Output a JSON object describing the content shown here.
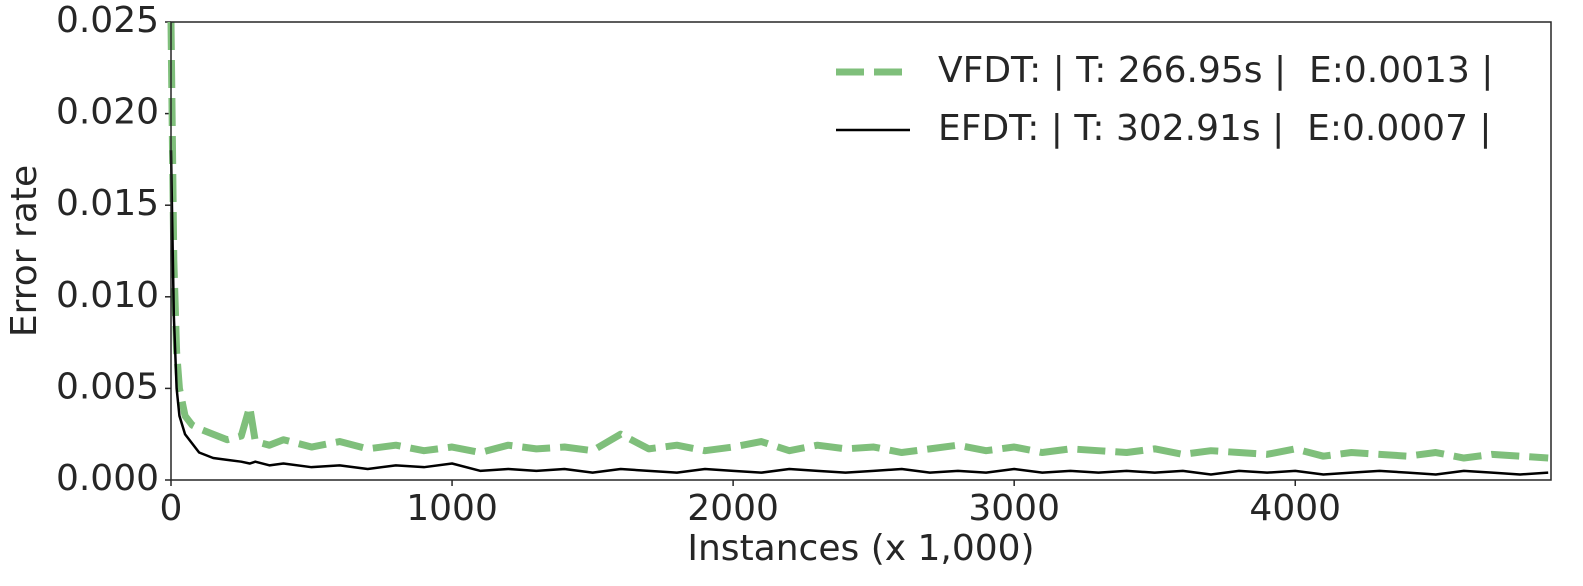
{
  "chart_data": {
    "type": "line",
    "x_label": "Instances (x 1,000)",
    "y_label": "Error rate",
    "x": [
      0,
      10,
      20,
      30,
      50,
      75,
      100,
      150,
      200,
      250,
      280,
      300,
      350,
      400,
      500,
      600,
      700,
      800,
      900,
      1000,
      1100,
      1200,
      1300,
      1400,
      1500,
      1600,
      1700,
      1800,
      1900,
      2000,
      2100,
      2200,
      2300,
      2400,
      2500,
      2600,
      2700,
      2800,
      2900,
      3000,
      3100,
      3200,
      3300,
      3400,
      3500,
      3600,
      3700,
      3800,
      3900,
      4000,
      4100,
      4200,
      4300,
      4400,
      4500,
      4600,
      4700,
      4800,
      4900
    ],
    "series": [
      {
        "name": "VFDT: | T: 266.95s |  E:0.0013 |",
        "color": "#7fbf7b",
        "dashed": true,
        "values": [
          0.025,
          0.012,
          0.007,
          0.005,
          0.0035,
          0.003,
          0.0028,
          0.0025,
          0.0022,
          0.0024,
          0.004,
          0.0021,
          0.0019,
          0.0022,
          0.0018,
          0.0021,
          0.0017,
          0.0019,
          0.0016,
          0.0018,
          0.0015,
          0.0019,
          0.0017,
          0.0018,
          0.0016,
          0.0025,
          0.0017,
          0.0019,
          0.0016,
          0.0018,
          0.0021,
          0.0016,
          0.0019,
          0.0017,
          0.0018,
          0.0015,
          0.0017,
          0.0019,
          0.0016,
          0.0018,
          0.0015,
          0.0017,
          0.0016,
          0.0015,
          0.0017,
          0.0014,
          0.0016,
          0.0015,
          0.0014,
          0.0017,
          0.0013,
          0.0015,
          0.0014,
          0.0013,
          0.0015,
          0.0012,
          0.0014,
          0.0013,
          0.0012
        ]
      },
      {
        "name": "EFDT: | T: 302.91s |  E:0.0007 |",
        "color": "#000000",
        "dashed": false,
        "values": [
          0.018,
          0.009,
          0.005,
          0.0035,
          0.0025,
          0.002,
          0.0015,
          0.0012,
          0.0011,
          0.001,
          0.0009,
          0.001,
          0.0008,
          0.0009,
          0.0007,
          0.0008,
          0.0006,
          0.0008,
          0.0007,
          0.0009,
          0.0005,
          0.0006,
          0.0005,
          0.0006,
          0.0004,
          0.0006,
          0.0005,
          0.0004,
          0.0006,
          0.0005,
          0.0004,
          0.0006,
          0.0005,
          0.0004,
          0.0005,
          0.0006,
          0.0004,
          0.0005,
          0.0004,
          0.0006,
          0.0004,
          0.0005,
          0.0004,
          0.0005,
          0.0004,
          0.0005,
          0.0003,
          0.0005,
          0.0004,
          0.0005,
          0.0003,
          0.0004,
          0.0005,
          0.0004,
          0.0003,
          0.0005,
          0.0004,
          0.0003,
          0.0004
        ]
      }
    ],
    "xlim": [
      0,
      4910
    ],
    "xticks": [
      0,
      1000,
      2000,
      3000,
      4000
    ],
    "ylim": [
      0,
      0.025
    ],
    "yticks": [
      {
        "value": 0,
        "label": "0.000"
      },
      0.005,
      {
        "value": 0.01,
        "label": "0.010"
      },
      0.015,
      {
        "value": 0.02,
        "label": "0.020"
      },
      0.025
    ],
    "legend": "upper right"
  }
}
